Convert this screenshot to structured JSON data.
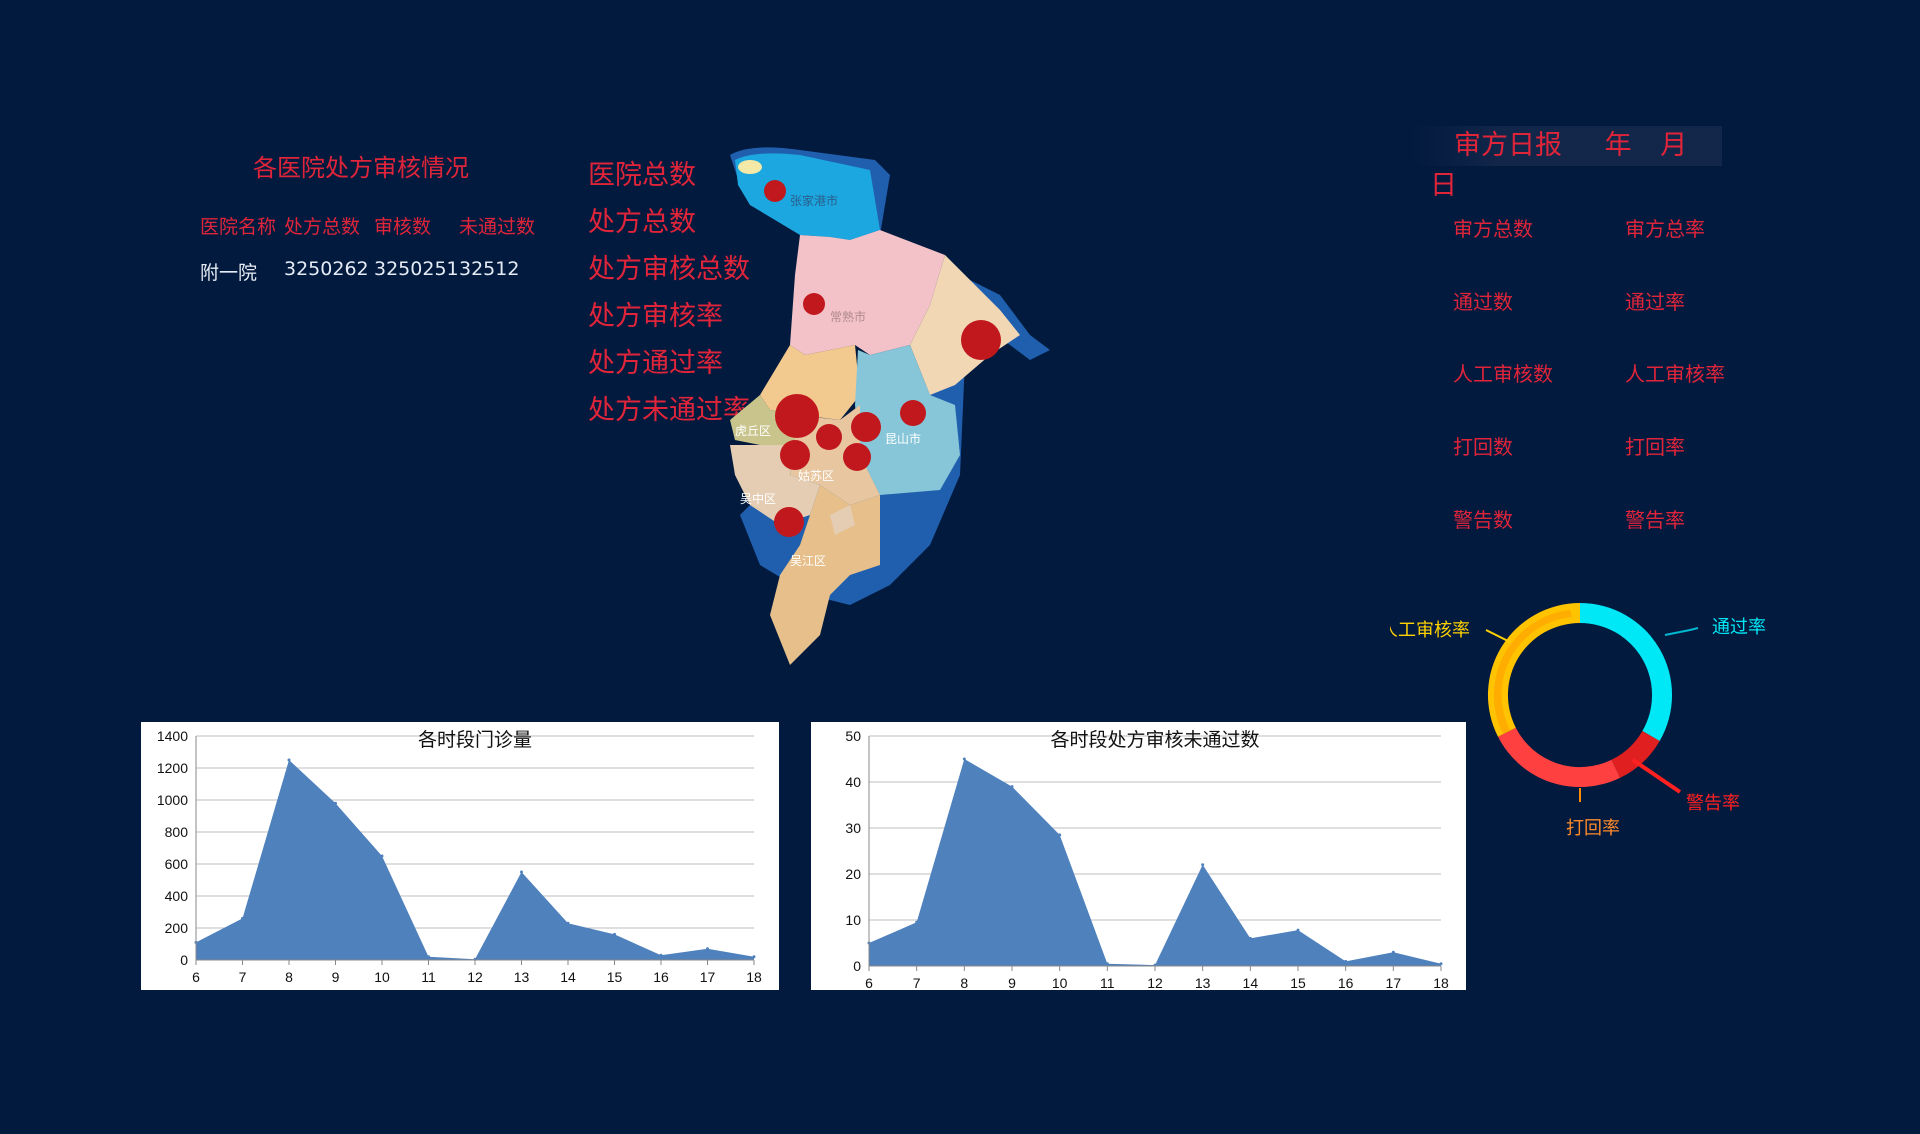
{
  "hospital_table": {
    "title": "各医院处方审核情况",
    "headers": [
      "医院名称",
      "处方总数",
      "审核数",
      "未通过数"
    ],
    "rows": [
      {
        "name": "附一院",
        "total": "3250262",
        "reviewed": "3250251",
        "failed": "32512"
      }
    ]
  },
  "center_metrics": [
    "医院总数",
    "处方总数",
    "处方审核总数",
    "处方审核率",
    "处方通过率",
    "处方未通过率"
  ],
  "map": {
    "regions": [
      "张家港市",
      "常熟市",
      "虎丘区",
      "姑苏区",
      "昆山市",
      "吴中区",
      "吴江区"
    ],
    "accent_dot_color": "#c0181c"
  },
  "daily_report": {
    "title": "审方日报",
    "year": "年",
    "month": "月",
    "day": "日",
    "items": [
      [
        "审方总数",
        "审方总率"
      ],
      [
        "通过数",
        "通过率"
      ],
      [
        "人工审核数",
        "人工审核率"
      ],
      [
        "打回数",
        "打回率"
      ],
      [
        "警告数",
        "警告率"
      ]
    ]
  },
  "donut": {
    "labels": {
      "pass": "通过率",
      "manual": "人工审核率",
      "return": "打回率",
      "warn": "警告率"
    },
    "colors": {
      "pass": "#00e8f6",
      "manual": "#ffd200",
      "return": "#ff3b3b",
      "warn": "#e02020"
    }
  },
  "chart_data": [
    {
      "type": "area",
      "title": "各时段门诊量",
      "x": [
        6,
        7,
        8,
        9,
        10,
        11,
        12,
        13,
        14,
        15,
        16,
        17,
        18
      ],
      "values": [
        110,
        260,
        1250,
        980,
        650,
        20,
        5,
        550,
        230,
        160,
        30,
        70,
        20
      ],
      "ylim": [
        0,
        1400
      ],
      "yticks": [
        0,
        200,
        400,
        600,
        800,
        1000,
        1200,
        1400
      ],
      "color": "#4f81bd",
      "grid": true
    },
    {
      "type": "area",
      "title": "各时段处方审核未通过数",
      "x": [
        6,
        7,
        8,
        9,
        10,
        11,
        12,
        13,
        14,
        15,
        16,
        17,
        18
      ],
      "values": [
        5,
        9.5,
        45,
        39,
        28.5,
        0.5,
        0.2,
        22,
        6,
        7.8,
        1,
        3,
        0.5
      ],
      "ylim": [
        0,
        50
      ],
      "yticks": [
        0,
        10,
        20,
        30,
        40,
        50
      ],
      "color": "#4f81bd",
      "grid": true
    }
  ]
}
